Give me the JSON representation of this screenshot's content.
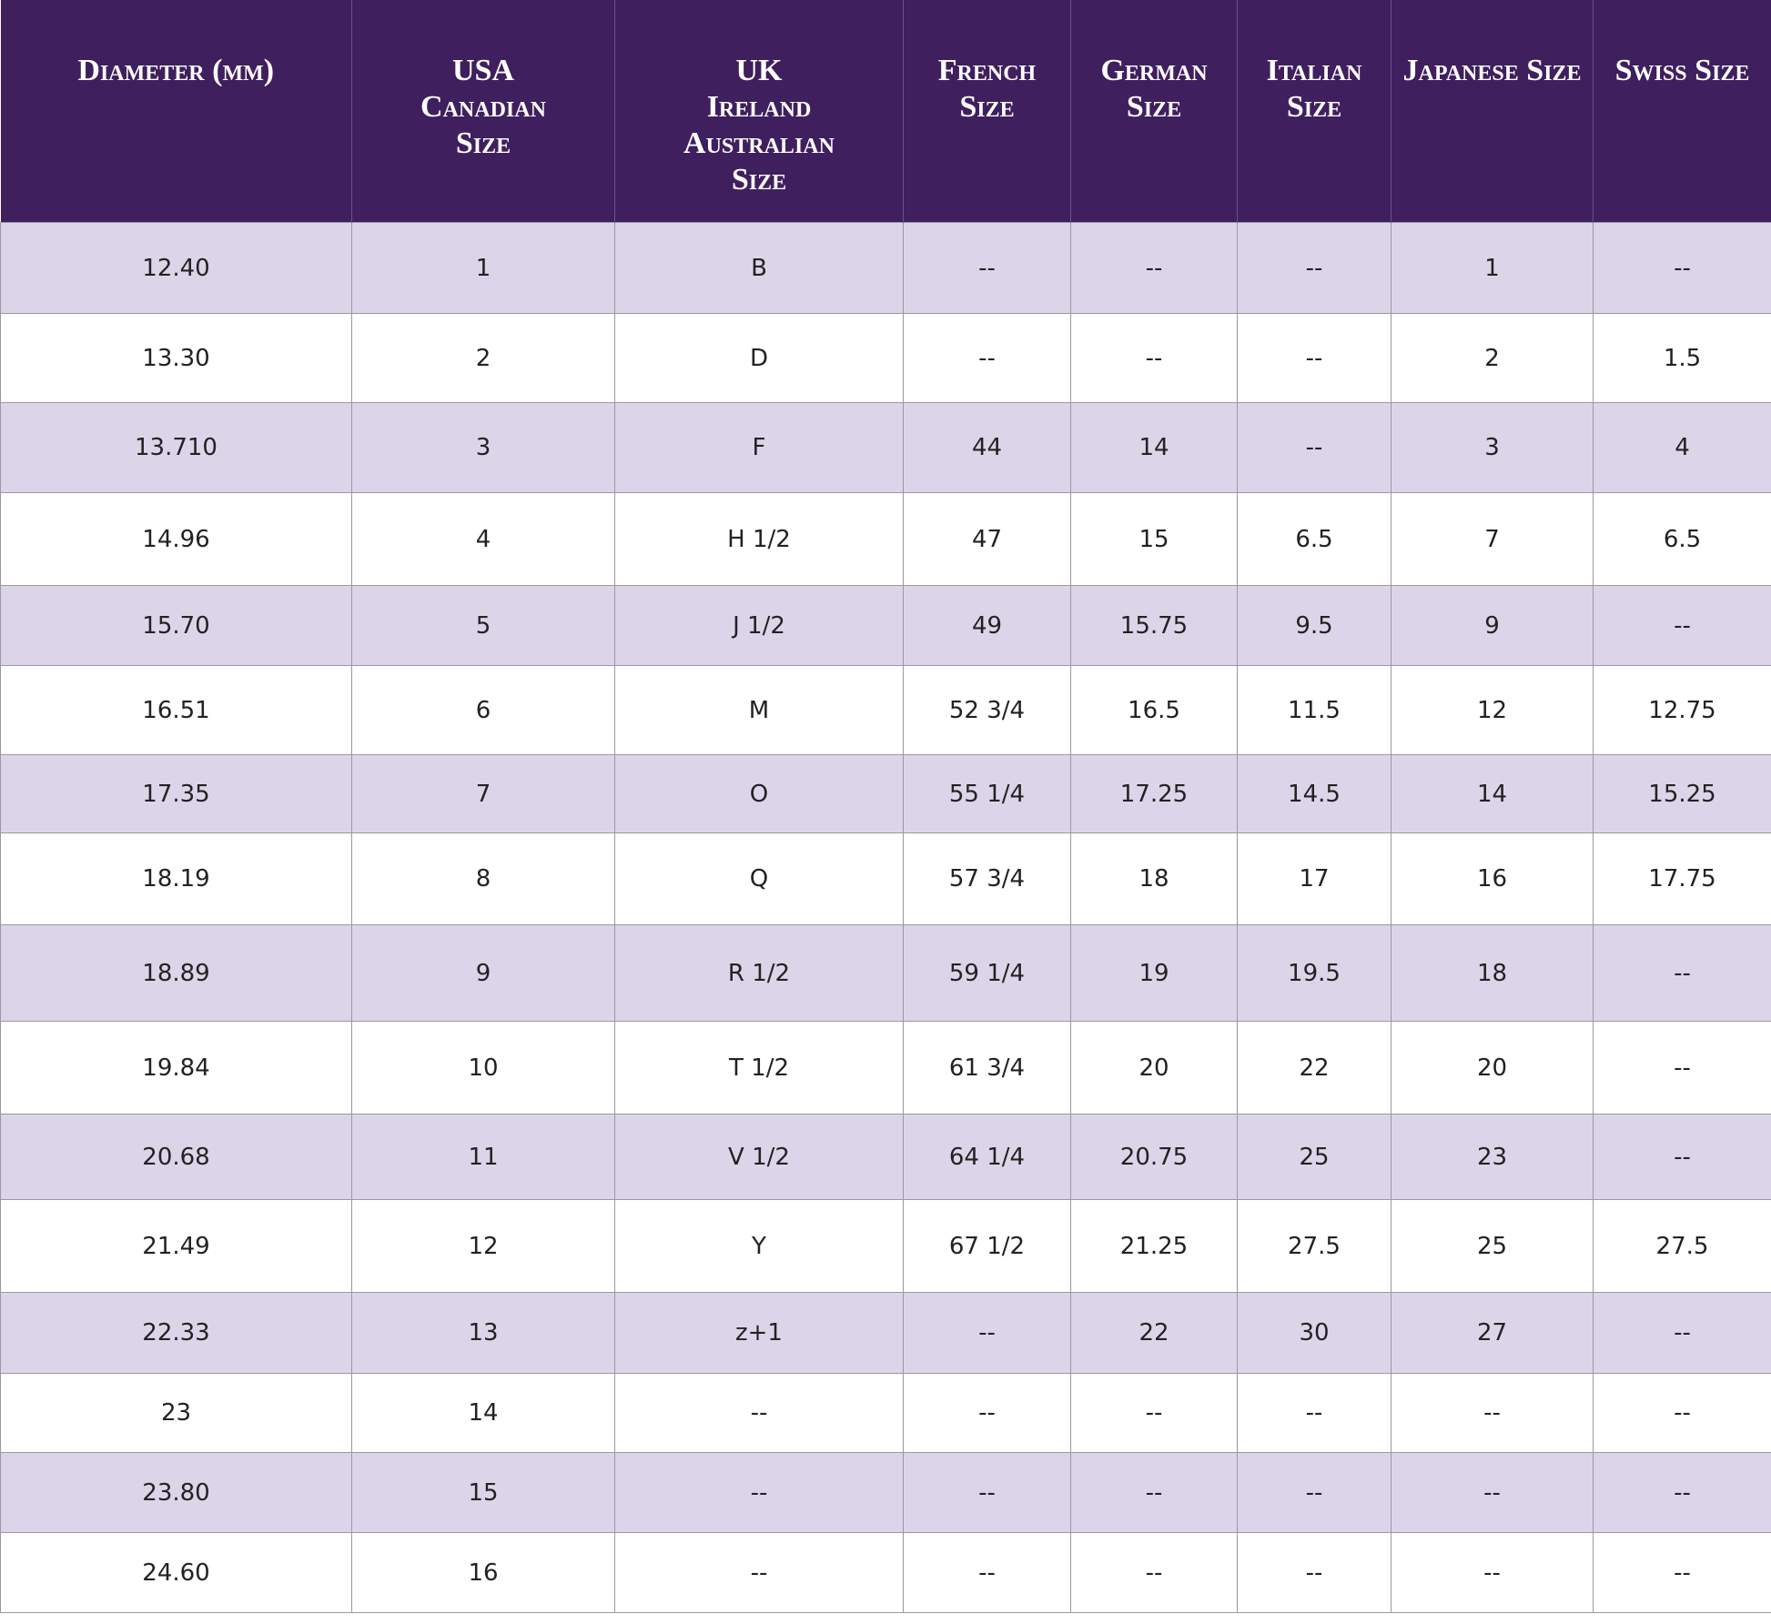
{
  "table": {
    "header": [
      [
        "Diameter (mm)"
      ],
      [
        "USA",
        "Canadian",
        "Size"
      ],
      [
        "UK",
        "Ireland",
        "Australian",
        "Size"
      ],
      [
        "French",
        "Size"
      ],
      [
        "German",
        "Size"
      ],
      [
        "Italian",
        "Size"
      ],
      [
        "Japanese Size"
      ],
      [
        "Swiss Size"
      ]
    ],
    "rows": [
      [
        "12.40",
        "1",
        "B",
        "--",
        "--",
        "--",
        "1",
        "--"
      ],
      [
        "13.30",
        "2",
        "D",
        "--",
        "--",
        "--",
        "2",
        "1.5"
      ],
      [
        "13.710",
        "3",
        "F",
        "44",
        "14",
        "--",
        "3",
        "4"
      ],
      [
        "14.96",
        "4",
        "H 1/2",
        "47",
        "15",
        "6.5",
        "7",
        "6.5"
      ],
      [
        "15.70",
        "5",
        "J 1/2",
        "49",
        "15.75",
        "9.5",
        "9",
        "--"
      ],
      [
        "16.51",
        "6",
        "M",
        "52 3/4",
        "16.5",
        "11.5",
        "12",
        "12.75"
      ],
      [
        "17.35",
        "7",
        "O",
        "55 1/4",
        "17.25",
        "14.5",
        "14",
        "15.25"
      ],
      [
        "18.19",
        "8",
        "Q",
        "57 3/4",
        "18",
        "17",
        "16",
        "17.75"
      ],
      [
        "18.89",
        "9",
        "R 1/2",
        "59 1/4",
        "19",
        "19.5",
        "18",
        "--"
      ],
      [
        "19.84",
        "10",
        "T 1/2",
        "61 3/4",
        "20",
        "22",
        "20",
        "--"
      ],
      [
        "20.68",
        "11",
        "V 1/2",
        "64 1/4",
        "20.75",
        "25",
        "23",
        "--"
      ],
      [
        "21.49",
        "12",
        "Y",
        "67 1/2",
        "21.25",
        "27.5",
        "25",
        "27.5"
      ],
      [
        "22.33",
        "13",
        "z+1",
        "--",
        "22",
        "30",
        "27",
        "--"
      ],
      [
        "23",
        "14",
        "--",
        "--",
        "--",
        "--",
        "--",
        "--"
      ],
      [
        "23.80",
        "15",
        "--",
        "--",
        "--",
        "--",
        "--",
        "--"
      ],
      [
        "24.60",
        "16",
        "--",
        "--",
        "--",
        "--",
        "--",
        "--"
      ]
    ]
  }
}
